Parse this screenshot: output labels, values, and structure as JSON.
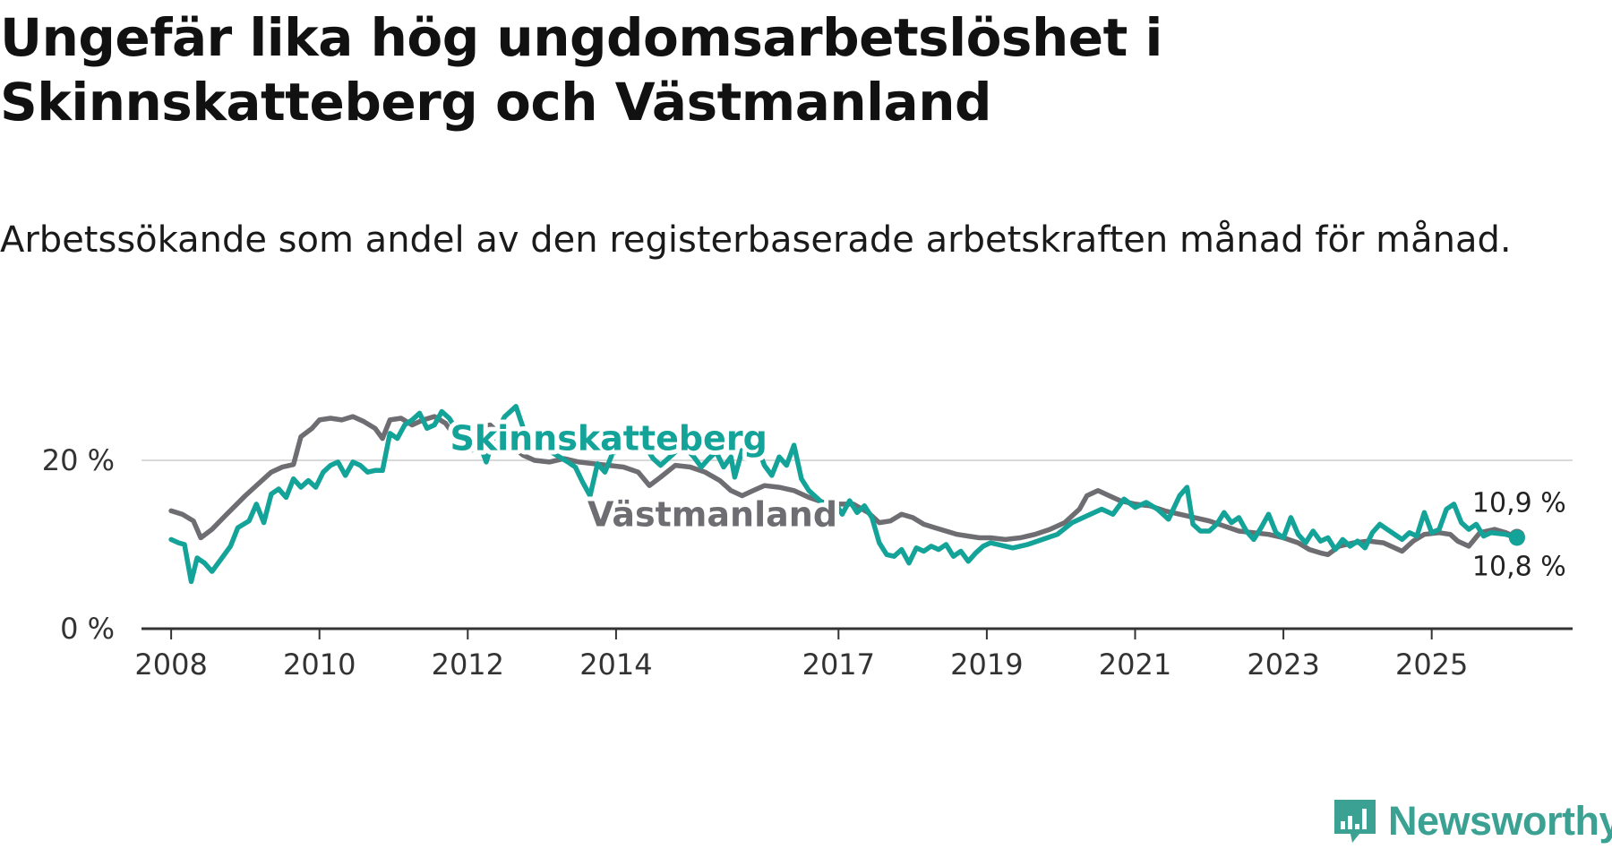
{
  "header": {
    "title": "Ungefär lika hög ungdomsarbetslöshet i Skinnskatteberg och Västmanland",
    "subtitle": "Arbetssökande som andel av den registerbaserade arbetskraften månad för månad."
  },
  "colors": {
    "skinnskatteberg": "#14a398",
    "vastmanland": "#6d6d72",
    "gridline": "#d9d9d9",
    "axis": "#333333",
    "brand": "#3aa193"
  },
  "brand": {
    "name": "Newsworthy",
    "icon": "newsworthy-logo-icon"
  },
  "chart_data": {
    "type": "line",
    "title": "Ungefär lika hög ungdomsarbetslöshet i Skinnskatteberg och Västmanland",
    "xlabel": "",
    "ylabel": "",
    "x_range": [
      2007.6,
      2026.9
    ],
    "ylim": [
      0,
      30
    ],
    "y_ticks": [
      {
        "value": 0,
        "label": "0 %"
      },
      {
        "value": 20,
        "label": "20 %"
      }
    ],
    "x_ticks": [
      {
        "value": 2008,
        "label": "2008"
      },
      {
        "value": 2010,
        "label": "2010"
      },
      {
        "value": 2012,
        "label": "2012"
      },
      {
        "value": 2014,
        "label": "2014"
      },
      {
        "value": 2017,
        "label": "2017"
      },
      {
        "value": 2019,
        "label": "2019"
      },
      {
        "value": 2021,
        "label": "2021"
      },
      {
        "value": 2023,
        "label": "2023"
      },
      {
        "value": 2025,
        "label": "2025"
      }
    ],
    "series": [
      {
        "name": "Västmanland",
        "color": "vastmanland",
        "label": "Västmanland",
        "end_label": "10,9 %",
        "end_value": 10.9,
        "points": [
          [
            2008.0,
            14.0
          ],
          [
            2008.15,
            13.6
          ],
          [
            2008.3,
            12.8
          ],
          [
            2008.4,
            10.8
          ],
          [
            2008.55,
            11.8
          ],
          [
            2008.75,
            13.6
          ],
          [
            2009.0,
            15.8
          ],
          [
            2009.2,
            17.4
          ],
          [
            2009.35,
            18.6
          ],
          [
            2009.5,
            19.2
          ],
          [
            2009.65,
            19.5
          ],
          [
            2009.75,
            22.8
          ],
          [
            2009.9,
            23.8
          ],
          [
            2010.0,
            24.8
          ],
          [
            2010.15,
            25.0
          ],
          [
            2010.3,
            24.8
          ],
          [
            2010.45,
            25.2
          ],
          [
            2010.6,
            24.6
          ],
          [
            2010.75,
            23.8
          ],
          [
            2010.85,
            22.6
          ],
          [
            2010.95,
            24.8
          ],
          [
            2011.1,
            25.0
          ],
          [
            2011.25,
            24.2
          ],
          [
            2011.4,
            24.8
          ],
          [
            2011.55,
            25.2
          ],
          [
            2011.7,
            24.4
          ],
          [
            2011.85,
            22.6
          ],
          [
            2012.0,
            22.4
          ],
          [
            2012.15,
            23.8
          ],
          [
            2012.3,
            24.2
          ],
          [
            2012.45,
            23.0
          ],
          [
            2012.6,
            21.6
          ],
          [
            2012.75,
            20.6
          ],
          [
            2012.9,
            20.0
          ],
          [
            2013.1,
            19.8
          ],
          [
            2013.3,
            20.2
          ],
          [
            2013.5,
            19.8
          ],
          [
            2013.7,
            19.6
          ],
          [
            2013.9,
            19.4
          ],
          [
            2014.1,
            19.2
          ],
          [
            2014.3,
            18.6
          ],
          [
            2014.45,
            17.0
          ],
          [
            2014.6,
            18.0
          ],
          [
            2014.8,
            19.4
          ],
          [
            2015.0,
            19.2
          ],
          [
            2015.2,
            18.6
          ],
          [
            2015.4,
            17.6
          ],
          [
            2015.55,
            16.4
          ],
          [
            2015.7,
            15.8
          ],
          [
            2015.85,
            16.4
          ],
          [
            2016.0,
            17.0
          ],
          [
            2016.2,
            16.8
          ],
          [
            2016.4,
            16.4
          ],
          [
            2016.6,
            15.6
          ],
          [
            2016.8,
            15.0
          ],
          [
            2017.0,
            14.8
          ],
          [
            2017.2,
            14.8
          ],
          [
            2017.4,
            13.8
          ],
          [
            2017.55,
            12.6
          ],
          [
            2017.7,
            12.8
          ],
          [
            2017.85,
            13.6
          ],
          [
            2018.0,
            13.2
          ],
          [
            2018.15,
            12.4
          ],
          [
            2018.3,
            12.0
          ],
          [
            2018.45,
            11.6
          ],
          [
            2018.6,
            11.2
          ],
          [
            2018.75,
            11.0
          ],
          [
            2018.9,
            10.8
          ],
          [
            2019.05,
            10.8
          ],
          [
            2019.25,
            10.6
          ],
          [
            2019.45,
            10.8
          ],
          [
            2019.65,
            11.2
          ],
          [
            2019.85,
            11.8
          ],
          [
            2020.05,
            12.6
          ],
          [
            2020.25,
            14.2
          ],
          [
            2020.35,
            15.8
          ],
          [
            2020.5,
            16.4
          ],
          [
            2020.65,
            15.8
          ],
          [
            2020.8,
            15.2
          ],
          [
            2021.0,
            14.8
          ],
          [
            2021.2,
            14.6
          ],
          [
            2021.4,
            14.0
          ],
          [
            2021.6,
            13.6
          ],
          [
            2021.8,
            13.2
          ],
          [
            2022.0,
            12.8
          ],
          [
            2022.2,
            12.2
          ],
          [
            2022.4,
            11.6
          ],
          [
            2022.6,
            11.4
          ],
          [
            2022.8,
            11.2
          ],
          [
            2023.0,
            10.8
          ],
          [
            2023.2,
            10.2
          ],
          [
            2023.35,
            9.4
          ],
          [
            2023.5,
            9.0
          ],
          [
            2023.6,
            8.8
          ],
          [
            2023.75,
            9.8
          ],
          [
            2023.95,
            10.2
          ],
          [
            2024.15,
            10.4
          ],
          [
            2024.35,
            10.2
          ],
          [
            2024.5,
            9.6
          ],
          [
            2024.6,
            9.2
          ],
          [
            2024.75,
            10.4
          ],
          [
            2024.9,
            11.2
          ],
          [
            2025.1,
            11.4
          ],
          [
            2025.25,
            11.2
          ],
          [
            2025.35,
            10.4
          ],
          [
            2025.5,
            9.8
          ],
          [
            2025.65,
            11.4
          ],
          [
            2025.85,
            11.8
          ],
          [
            2026.0,
            11.4
          ],
          [
            2026.1,
            11.0
          ],
          [
            2026.15,
            10.9
          ]
        ]
      },
      {
        "name": "Skinnskatteberg",
        "color": "skinnskatteberg",
        "label": "Skinnskatteberg",
        "end_label": "10,8 %",
        "end_value": 10.8,
        "points": [
          [
            2008.0,
            10.6
          ],
          [
            2008.1,
            10.2
          ],
          [
            2008.18,
            10.0
          ],
          [
            2008.27,
            5.6
          ],
          [
            2008.35,
            8.4
          ],
          [
            2008.45,
            7.8
          ],
          [
            2008.55,
            6.8
          ],
          [
            2008.7,
            8.6
          ],
          [
            2008.8,
            9.8
          ],
          [
            2008.9,
            12.0
          ],
          [
            2009.05,
            12.8
          ],
          [
            2009.15,
            14.8
          ],
          [
            2009.25,
            12.6
          ],
          [
            2009.35,
            16.0
          ],
          [
            2009.45,
            16.6
          ],
          [
            2009.55,
            15.6
          ],
          [
            2009.65,
            17.8
          ],
          [
            2009.75,
            16.8
          ],
          [
            2009.85,
            17.6
          ],
          [
            2009.95,
            16.8
          ],
          [
            2010.05,
            18.6
          ],
          [
            2010.15,
            19.4
          ],
          [
            2010.25,
            19.8
          ],
          [
            2010.35,
            18.2
          ],
          [
            2010.45,
            19.8
          ],
          [
            2010.55,
            19.4
          ],
          [
            2010.65,
            18.6
          ],
          [
            2010.75,
            18.8
          ],
          [
            2010.85,
            18.8
          ],
          [
            2010.95,
            23.2
          ],
          [
            2011.05,
            22.6
          ],
          [
            2011.15,
            24.2
          ],
          [
            2011.25,
            24.8
          ],
          [
            2011.35,
            25.6
          ],
          [
            2011.45,
            23.8
          ],
          [
            2011.55,
            24.2
          ],
          [
            2011.65,
            25.8
          ],
          [
            2011.75,
            25.0
          ],
          [
            2011.85,
            23.6
          ],
          [
            2011.95,
            22.4
          ],
          [
            2012.05,
            21.2
          ],
          [
            2012.15,
            22.2
          ],
          [
            2012.25,
            19.8
          ],
          [
            2012.35,
            22.8
          ],
          [
            2012.5,
            25.2
          ],
          [
            2012.65,
            26.4
          ],
          [
            2012.75,
            23.8
          ],
          [
            2012.9,
            22.2
          ],
          [
            2013.05,
            21.4
          ],
          [
            2013.2,
            20.6
          ],
          [
            2013.35,
            19.8
          ],
          [
            2013.45,
            19.2
          ],
          [
            2013.55,
            17.4
          ],
          [
            2013.65,
            15.8
          ],
          [
            2013.75,
            19.6
          ],
          [
            2013.85,
            18.6
          ],
          [
            2013.95,
            20.8
          ],
          [
            2014.1,
            21.4
          ],
          [
            2014.25,
            21.2
          ],
          [
            2014.4,
            21.6
          ],
          [
            2014.5,
            20.2
          ],
          [
            2014.6,
            19.4
          ],
          [
            2014.75,
            20.6
          ],
          [
            2014.9,
            21.8
          ],
          [
            2015.05,
            20.4
          ],
          [
            2015.15,
            19.2
          ],
          [
            2015.25,
            20.2
          ],
          [
            2015.35,
            21.0
          ],
          [
            2015.45,
            19.2
          ],
          [
            2015.55,
            20.4
          ],
          [
            2015.6,
            18.0
          ],
          [
            2015.7,
            21.2
          ],
          [
            2015.8,
            20.4
          ],
          [
            2015.9,
            21.8
          ],
          [
            2016.0,
            19.4
          ],
          [
            2016.1,
            18.2
          ],
          [
            2016.2,
            20.4
          ],
          [
            2016.3,
            19.4
          ],
          [
            2016.4,
            21.8
          ],
          [
            2016.5,
            17.8
          ],
          [
            2016.6,
            16.4
          ],
          [
            2016.75,
            15.2
          ],
          [
            2016.85,
            14.2
          ],
          [
            2016.95,
            15.0
          ],
          [
            2017.05,
            13.6
          ],
          [
            2017.15,
            15.2
          ],
          [
            2017.25,
            13.8
          ],
          [
            2017.35,
            14.6
          ],
          [
            2017.45,
            13.2
          ],
          [
            2017.55,
            10.2
          ],
          [
            2017.65,
            8.8
          ],
          [
            2017.75,
            8.6
          ],
          [
            2017.85,
            9.4
          ],
          [
            2017.95,
            7.8
          ],
          [
            2018.05,
            9.6
          ],
          [
            2018.15,
            9.2
          ],
          [
            2018.25,
            9.8
          ],
          [
            2018.35,
            9.4
          ],
          [
            2018.45,
            10.0
          ],
          [
            2018.55,
            8.6
          ],
          [
            2018.65,
            9.2
          ],
          [
            2018.75,
            8.0
          ],
          [
            2018.85,
            9.0
          ],
          [
            2018.95,
            9.8
          ],
          [
            2019.05,
            10.2
          ],
          [
            2019.15,
            10.0
          ],
          [
            2019.25,
            9.8
          ],
          [
            2019.35,
            9.6
          ],
          [
            2019.55,
            10.0
          ],
          [
            2019.75,
            10.6
          ],
          [
            2019.95,
            11.2
          ],
          [
            2020.15,
            12.6
          ],
          [
            2020.35,
            13.4
          ],
          [
            2020.55,
            14.2
          ],
          [
            2020.7,
            13.6
          ],
          [
            2020.85,
            15.4
          ],
          [
            2021.0,
            14.4
          ],
          [
            2021.15,
            15.0
          ],
          [
            2021.3,
            14.2
          ],
          [
            2021.45,
            13.0
          ],
          [
            2021.6,
            15.8
          ],
          [
            2021.7,
            16.8
          ],
          [
            2021.78,
            12.4
          ],
          [
            2021.88,
            11.6
          ],
          [
            2022.0,
            11.6
          ],
          [
            2022.1,
            12.4
          ],
          [
            2022.2,
            13.8
          ],
          [
            2022.3,
            12.6
          ],
          [
            2022.4,
            13.2
          ],
          [
            2022.5,
            11.6
          ],
          [
            2022.6,
            10.6
          ],
          [
            2022.7,
            12.0
          ],
          [
            2022.8,
            13.6
          ],
          [
            2022.9,
            11.4
          ],
          [
            2023.0,
            10.8
          ],
          [
            2023.1,
            13.2
          ],
          [
            2023.2,
            11.2
          ],
          [
            2023.3,
            10.2
          ],
          [
            2023.4,
            11.6
          ],
          [
            2023.5,
            10.4
          ],
          [
            2023.6,
            10.8
          ],
          [
            2023.7,
            9.4
          ],
          [
            2023.8,
            10.6
          ],
          [
            2023.9,
            9.8
          ],
          [
            2024.0,
            10.4
          ],
          [
            2024.1,
            9.6
          ],
          [
            2024.2,
            11.4
          ],
          [
            2024.3,
            12.4
          ],
          [
            2024.4,
            11.8
          ],
          [
            2024.5,
            11.2
          ],
          [
            2024.6,
            10.6
          ],
          [
            2024.7,
            11.4
          ],
          [
            2024.8,
            11.0
          ],
          [
            2024.9,
            13.8
          ],
          [
            2025.0,
            11.4
          ],
          [
            2025.1,
            11.8
          ],
          [
            2025.2,
            14.2
          ],
          [
            2025.3,
            14.8
          ],
          [
            2025.4,
            12.6
          ],
          [
            2025.5,
            11.8
          ],
          [
            2025.6,
            12.4
          ],
          [
            2025.7,
            11.0
          ],
          [
            2025.8,
            11.4
          ],
          [
            2026.0,
            11.2
          ],
          [
            2026.15,
            10.8
          ]
        ]
      }
    ]
  }
}
